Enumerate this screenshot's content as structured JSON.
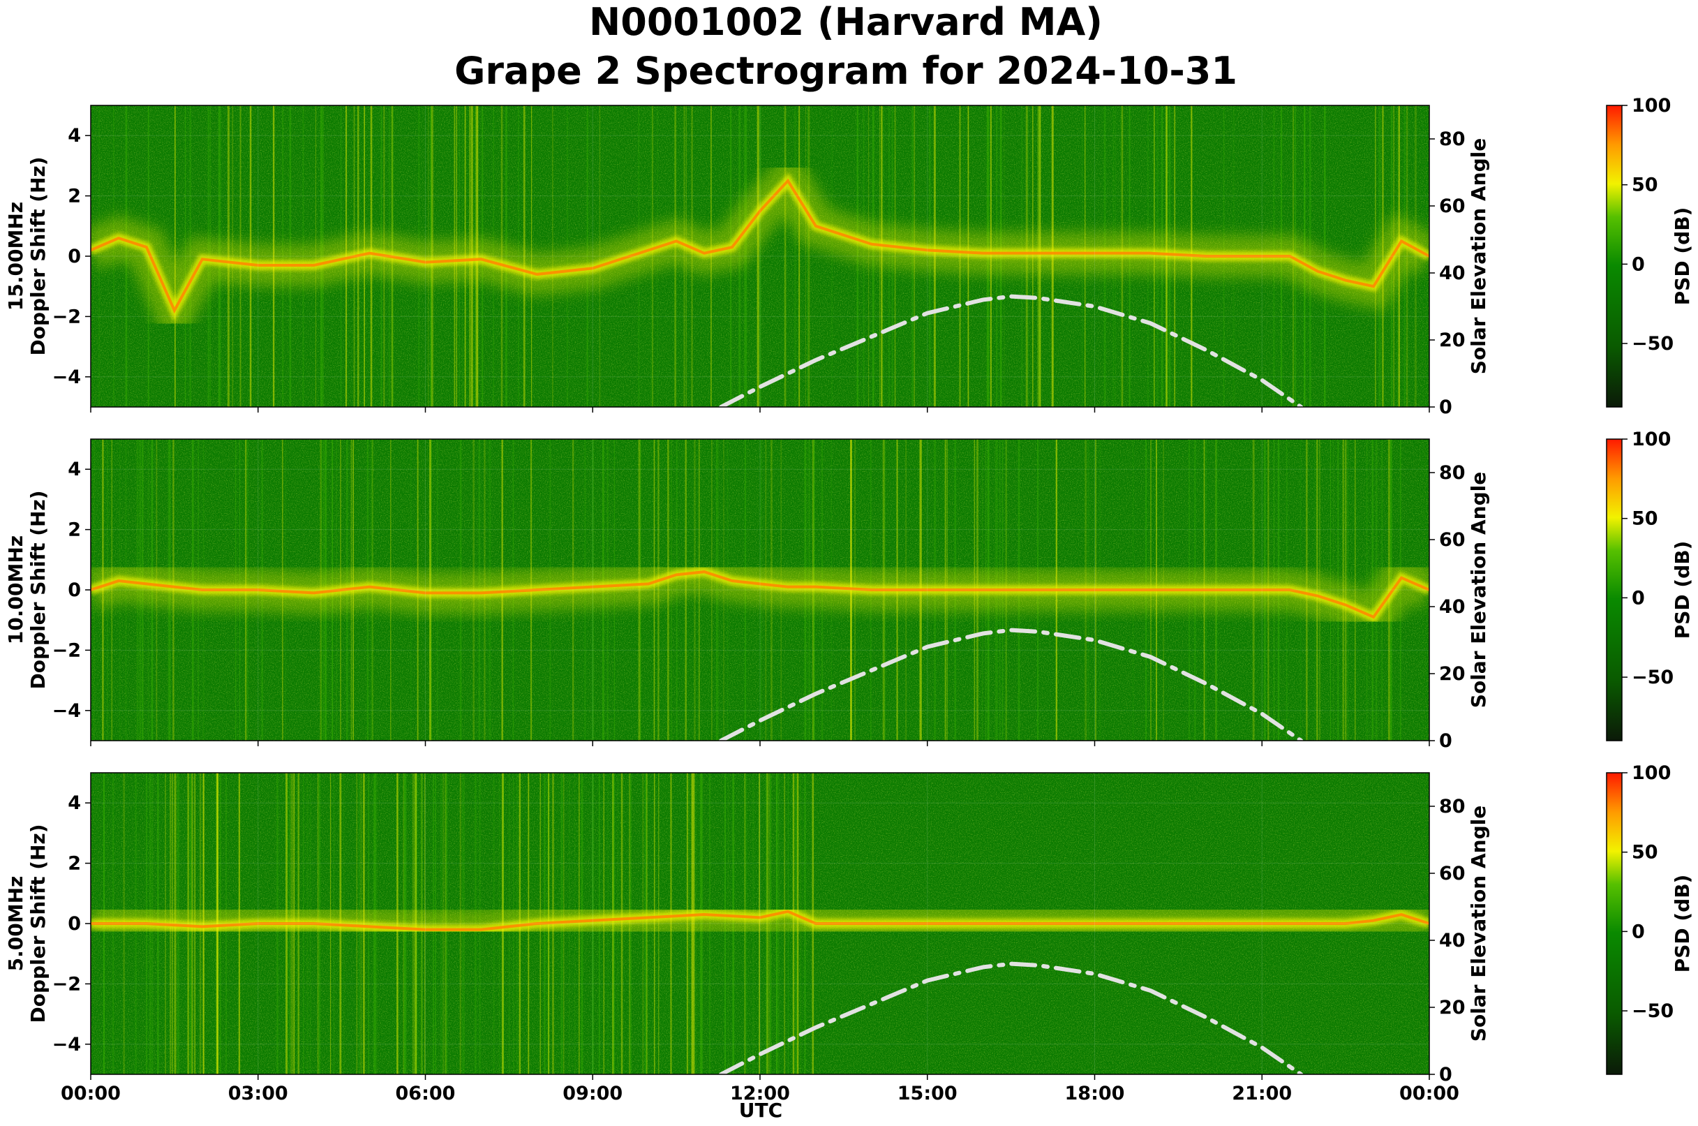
{
  "figure": {
    "title_line1": "N0001002 (Harvard MA)",
    "title_line2": "Grape 2 Spectrogram for 2024-10-31",
    "xlabel": "UTC"
  },
  "colors": {
    "dark": "#0b1a08",
    "green": "#0a7a00",
    "bright_green": "#38b000",
    "yellow": "#f2f200",
    "orange": "#ff8a00",
    "red": "#ff1a00",
    "solar_curve": "#e2e2e2"
  },
  "chart_data": [
    {
      "type": "heatmap",
      "frequency_label": "15.00MHz",
      "ylabel_left": "Doppler Shift (Hz)",
      "ylabel_right": "Solar Elevation Angle",
      "colorbar_label": "PSD (dB)",
      "x_ticks": [
        "00:00",
        "03:00",
        "06:00",
        "09:00",
        "12:00",
        "15:00",
        "18:00",
        "21:00",
        "00:00"
      ],
      "xlim_hours": [
        0,
        24
      ],
      "ylim_hz": [
        -5,
        5
      ],
      "y_ticks_hz": [
        4,
        2,
        0,
        -2,
        -4
      ],
      "y2lim_deg": [
        0,
        90
      ],
      "y2_ticks_deg": [
        80,
        60,
        40,
        20,
        0
      ],
      "colorbar_range_db": [
        -90,
        100
      ],
      "colorbar_ticks_db": [
        100,
        50,
        0,
        -50
      ],
      "solar_elevation": {
        "utc_hours": [
          11.3,
          12,
          13,
          14,
          15,
          16,
          16.5,
          17,
          18,
          19,
          20,
          21,
          21.7
        ],
        "degrees": [
          0,
          6,
          14,
          21,
          28,
          32,
          33,
          32.5,
          30,
          25,
          17,
          8,
          0
        ]
      },
      "doppler_trace": {
        "utc_hours": [
          0,
          0.5,
          1,
          1.5,
          2,
          3,
          4,
          5,
          6,
          7,
          8,
          9,
          10,
          10.5,
          11,
          11.5,
          12,
          12.5,
          13,
          14,
          15,
          16,
          17,
          18,
          19,
          20,
          21,
          21.5,
          22,
          22.5,
          23,
          23.5,
          24
        ],
        "hz": [
          0.2,
          0.6,
          0.3,
          -1.8,
          -0.1,
          -0.3,
          -0.3,
          0.1,
          -0.2,
          -0.1,
          -0.6,
          -0.4,
          0.2,
          0.5,
          0.1,
          0.3,
          1.5,
          2.5,
          1.0,
          0.4,
          0.2,
          0.1,
          0.1,
          0.1,
          0.1,
          0.0,
          0.0,
          0.0,
          -0.5,
          -0.8,
          -1.0,
          0.5,
          0.0
        ]
      }
    },
    {
      "type": "heatmap",
      "frequency_label": "10.00MHz",
      "ylabel_left": "Doppler Shift (Hz)",
      "ylabel_right": "Solar Elevation Angle",
      "colorbar_label": "PSD (dB)",
      "x_ticks": [
        "00:00",
        "03:00",
        "06:00",
        "09:00",
        "12:00",
        "15:00",
        "18:00",
        "21:00",
        "00:00"
      ],
      "xlim_hours": [
        0,
        24
      ],
      "ylim_hz": [
        -5,
        5
      ],
      "y_ticks_hz": [
        4,
        2,
        0,
        -2,
        -4
      ],
      "y2lim_deg": [
        0,
        90
      ],
      "y2_ticks_deg": [
        80,
        60,
        40,
        20,
        0
      ],
      "colorbar_range_db": [
        -90,
        100
      ],
      "colorbar_ticks_db": [
        100,
        50,
        0,
        -50
      ],
      "solar_elevation": {
        "utc_hours": [
          11.3,
          12,
          13,
          14,
          15,
          16,
          16.5,
          17,
          18,
          19,
          20,
          21,
          21.7
        ],
        "degrees": [
          0,
          6,
          14,
          21,
          28,
          32,
          33,
          32.5,
          30,
          25,
          17,
          8,
          0
        ]
      },
      "doppler_trace": {
        "utc_hours": [
          0,
          0.5,
          1,
          2,
          3,
          4,
          5,
          6,
          7,
          8,
          9,
          10,
          10.5,
          11,
          11.5,
          12,
          12.5,
          13,
          14,
          15,
          16,
          17,
          18,
          19,
          20,
          21,
          21.5,
          22,
          22.5,
          23,
          23.5,
          24
        ],
        "hz": [
          0.0,
          0.3,
          0.2,
          0.0,
          0.0,
          -0.1,
          0.1,
          -0.1,
          -0.1,
          0.0,
          0.1,
          0.2,
          0.5,
          0.6,
          0.3,
          0.2,
          0.1,
          0.1,
          0.0,
          0.0,
          0.0,
          0.0,
          0.0,
          0.0,
          0.0,
          0.0,
          0.0,
          -0.2,
          -0.5,
          -0.9,
          0.4,
          0.0
        ]
      }
    },
    {
      "type": "heatmap",
      "frequency_label": "5.00MHz",
      "ylabel_left": "Doppler Shift (Hz)",
      "ylabel_right": "Solar Elevation Angle",
      "colorbar_label": "PSD (dB)",
      "x_ticks": [
        "00:00",
        "03:00",
        "06:00",
        "09:00",
        "12:00",
        "15:00",
        "18:00",
        "21:00",
        "00:00"
      ],
      "xlim_hours": [
        0,
        24
      ],
      "ylim_hz": [
        -5,
        5
      ],
      "y_ticks_hz": [
        4,
        2,
        0,
        -2,
        -4
      ],
      "y2lim_deg": [
        0,
        90
      ],
      "y2_ticks_deg": [
        80,
        60,
        40,
        20,
        0
      ],
      "colorbar_range_db": [
        -90,
        100
      ],
      "colorbar_ticks_db": [
        100,
        50,
        0,
        -50
      ],
      "solar_elevation": {
        "utc_hours": [
          11.3,
          12,
          13,
          14,
          15,
          16,
          16.5,
          17,
          18,
          19,
          20,
          21,
          21.7
        ],
        "degrees": [
          0,
          6,
          14,
          21,
          28,
          32,
          33,
          32.5,
          30,
          25,
          17,
          8,
          0
        ]
      },
      "doppler_trace": {
        "utc_hours": [
          0,
          1,
          2,
          3,
          4,
          5,
          6,
          7,
          8,
          9,
          10,
          11,
          12,
          12.5,
          13,
          22.5,
          23,
          23.5,
          24
        ],
        "hz": [
          0.0,
          0.0,
          -0.1,
          0.0,
          0.0,
          -0.1,
          -0.2,
          -0.2,
          0.0,
          0.1,
          0.2,
          0.3,
          0.2,
          0.4,
          0.0,
          0.0,
          0.1,
          0.3,
          0.0
        ]
      }
    }
  ]
}
